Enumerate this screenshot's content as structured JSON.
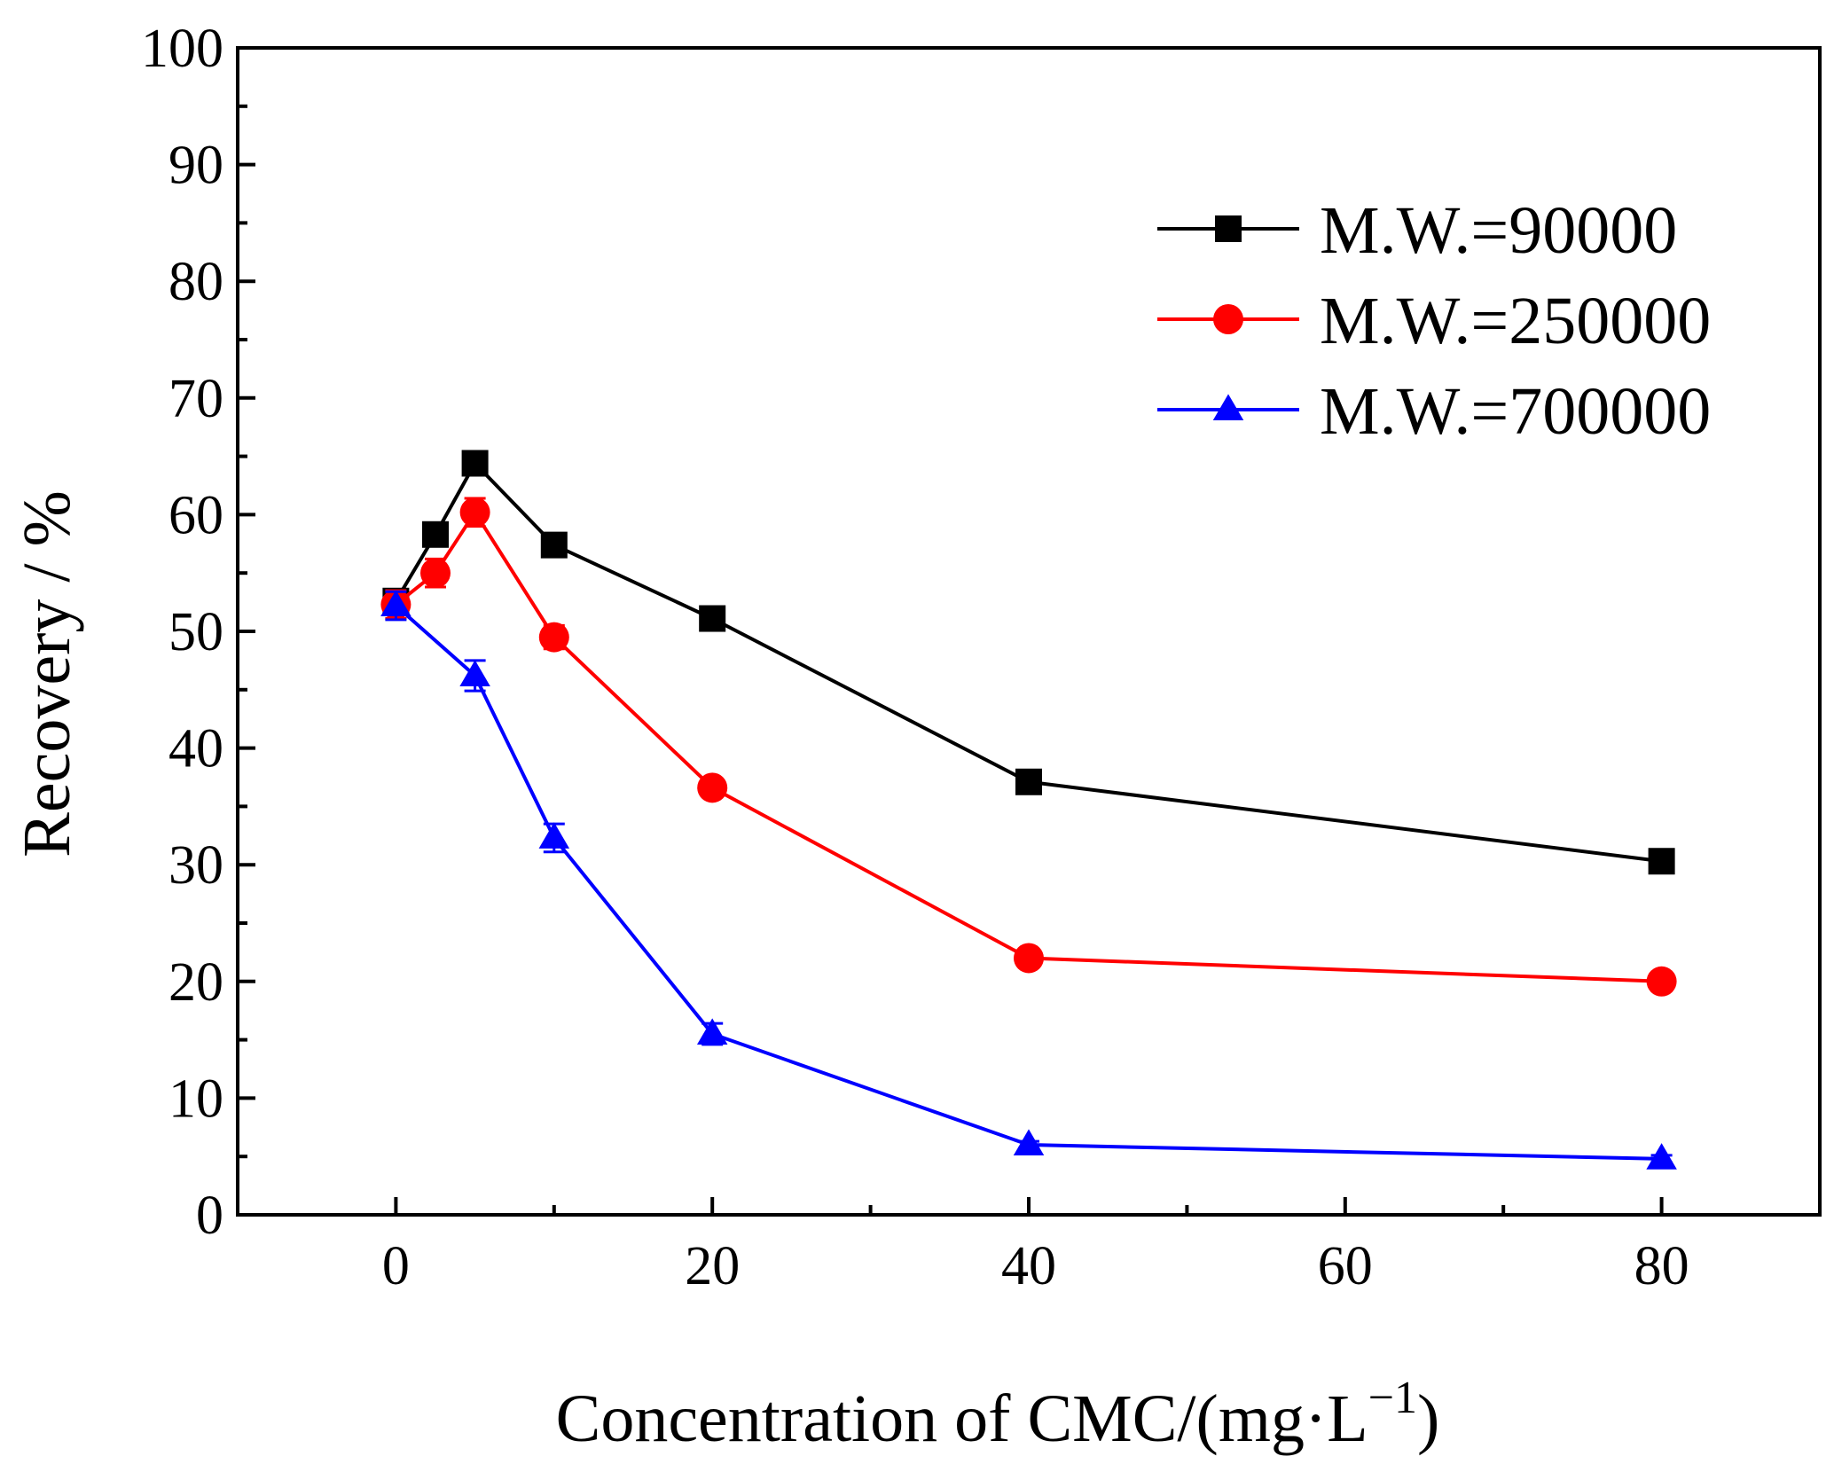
{
  "chart_data": {
    "type": "line",
    "title": "",
    "xlabel": "Concentration of CMC/(mg·L",
    "xlabel_sup": "−1",
    "xlabel_close": ")",
    "ylabel": "Recovery / %",
    "xlim": [
      -10,
      90
    ],
    "ylim": [
      0,
      100
    ],
    "x_ticks": [
      0,
      20,
      40,
      60,
      80
    ],
    "x_tick_labels": [
      "0",
      "20",
      "40",
      "60",
      "80"
    ],
    "y_ticks": [
      0,
      10,
      20,
      30,
      40,
      50,
      60,
      70,
      80,
      90,
      100
    ],
    "y_tick_labels": [
      "0",
      "10",
      "20",
      "30",
      "40",
      "50",
      "60",
      "70",
      "80",
      "90",
      "100"
    ],
    "grid": false,
    "legend_position": "top-right",
    "x": [
      0,
      2.5,
      5,
      10,
      20,
      40,
      80
    ],
    "series": [
      {
        "name": "M.W.=90000",
        "color": "#000000",
        "marker": "square",
        "values": [
          52.6,
          58.3,
          64.4,
          57.4,
          51.1,
          37.1,
          30.3
        ],
        "errors": [
          1.0,
          1.0,
          1.0,
          0.9,
          0.7,
          0.5,
          0.4
        ]
      },
      {
        "name": "M.W.=250000",
        "color": "#ff0000",
        "marker": "circle",
        "values": [
          52.3,
          55.0,
          60.2,
          49.5,
          36.6,
          22.0,
          20.0
        ],
        "errors": [
          1.2,
          1.2,
          1.2,
          1.0,
          0.5,
          0.4,
          0.3
        ]
      },
      {
        "name": "M.W.=700000",
        "color": "#0000ff",
        "marker": "triangle",
        "values": [
          52.2,
          null,
          46.2,
          32.3,
          15.5,
          6.0,
          4.8
        ],
        "errors": [
          1.2,
          null,
          1.3,
          1.2,
          0.9,
          0.3,
          0.3
        ]
      }
    ]
  }
}
